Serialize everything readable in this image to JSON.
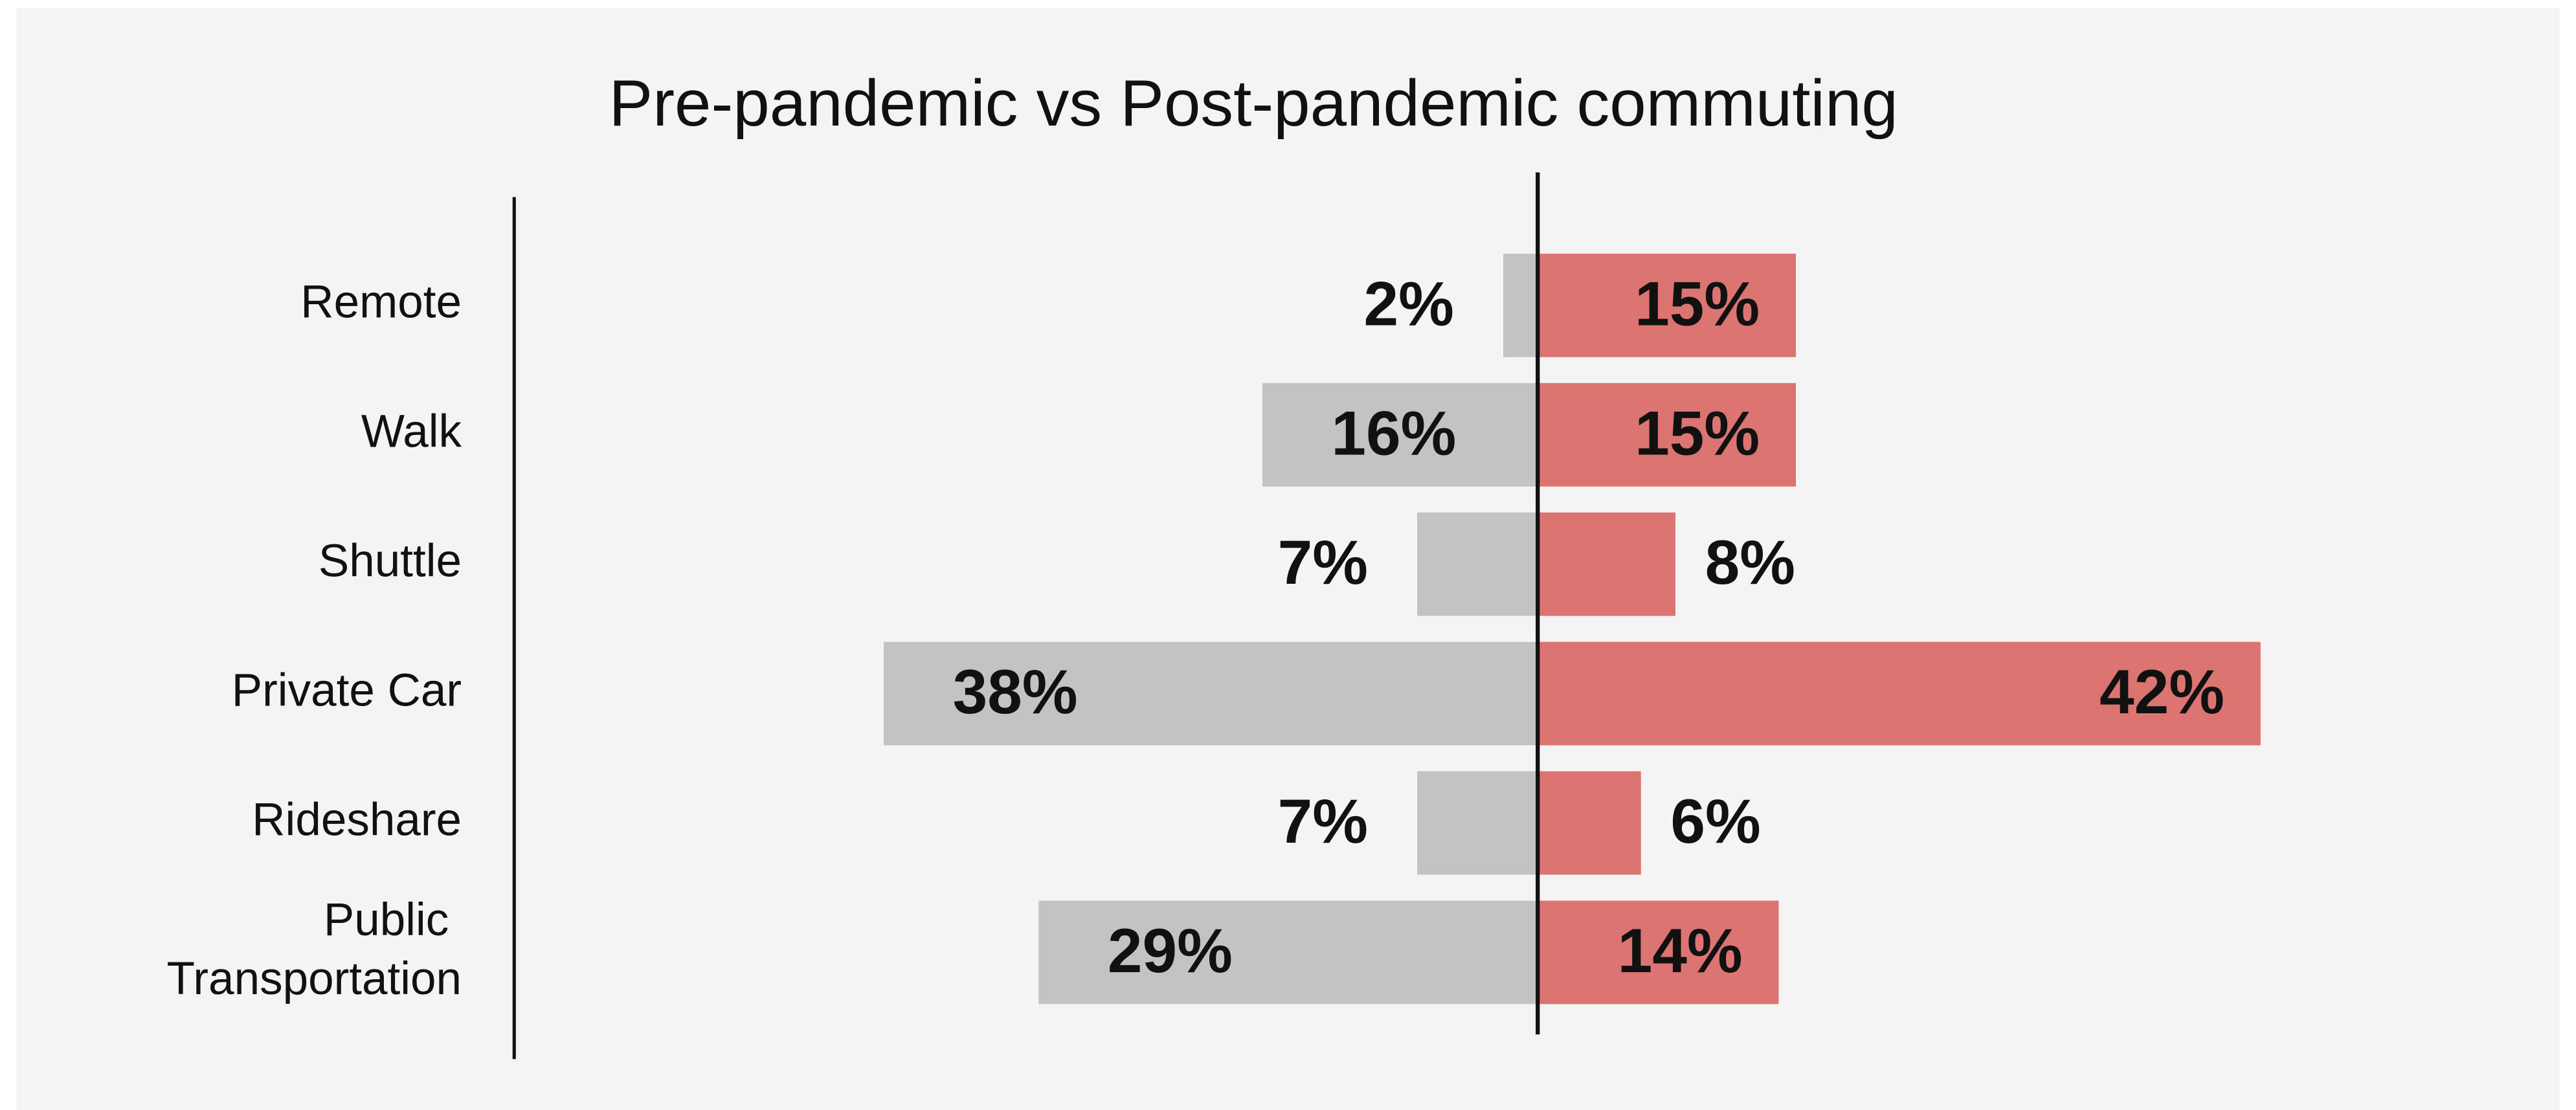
{
  "chart_data": {
    "type": "diverging-bar",
    "title": "Pre-pandemic vs Post-pandemic commuting",
    "categories": [
      "Remote",
      "Walk",
      "Shuttle",
      "Private Car",
      "Rideshare",
      "Public Transportation"
    ],
    "series": [
      {
        "color": "#c3c3c3",
        "values": [
          2,
          16,
          7,
          38,
          7,
          29
        ],
        "value_labels": [
          "2%",
          "16%",
          "7%",
          "38%",
          "7%",
          "29%"
        ]
      },
      {
        "color": "#dc7471",
        "values": [
          15,
          15,
          8,
          42,
          6,
          14
        ],
        "value_labels": [
          "15%",
          "15%",
          "8%",
          "42%",
          "6%",
          "14%"
        ]
      }
    ]
  }
}
